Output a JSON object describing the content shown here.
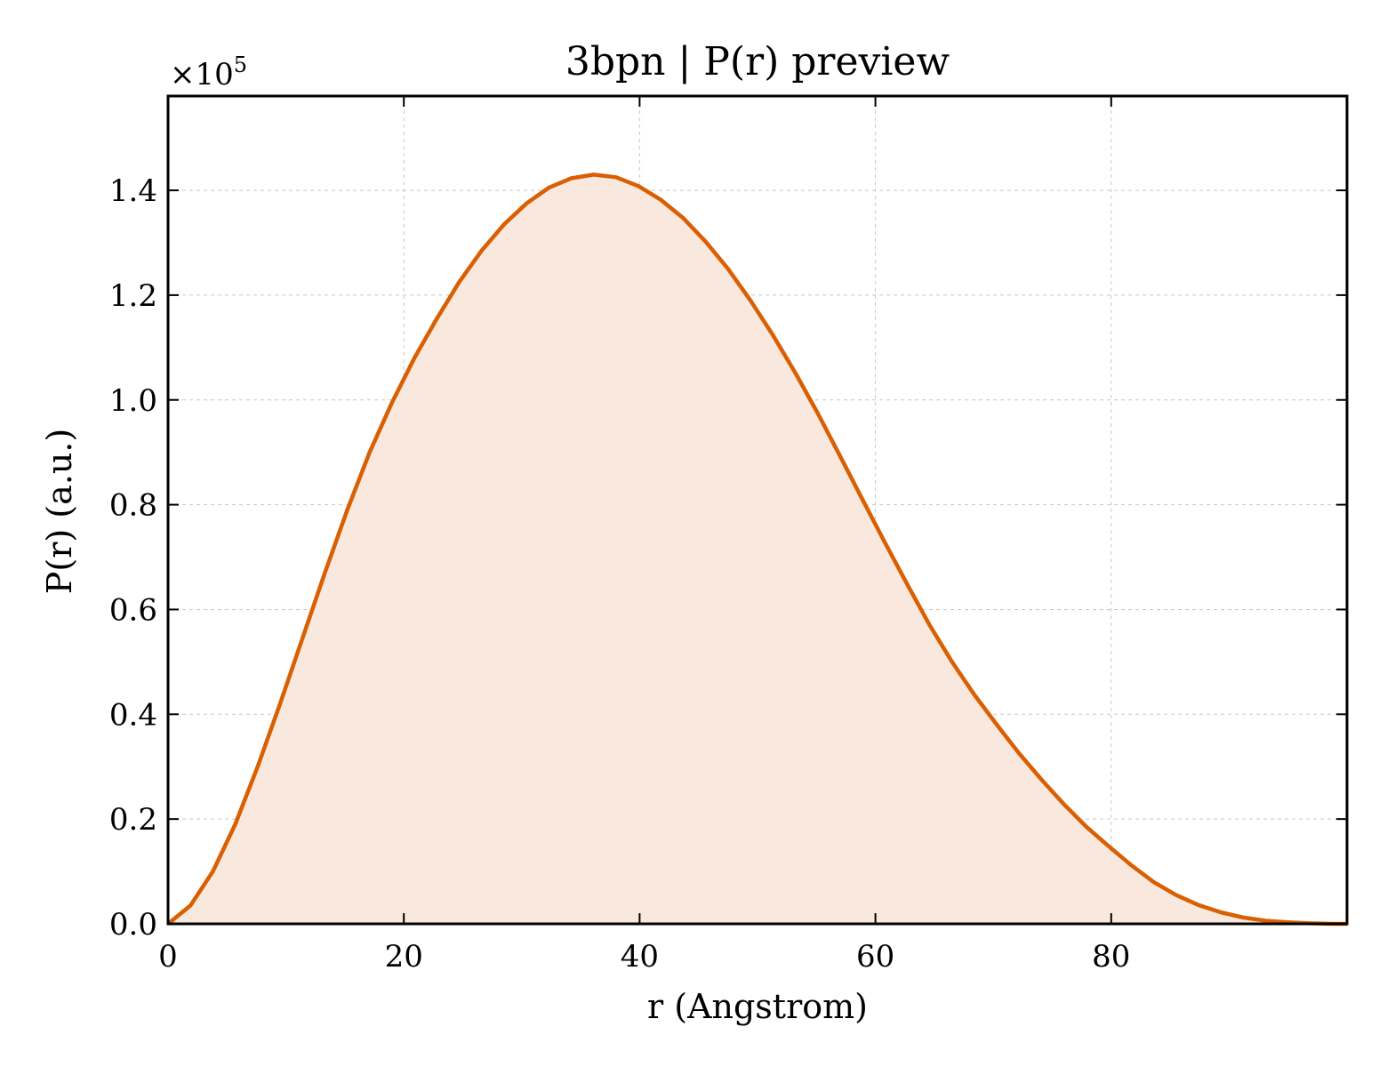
{
  "chart_data": {
    "type": "area",
    "title": "3bpn | P(r) preview",
    "xlabel": "r (Angstrom)",
    "ylabel": "P(r) (a.u.)",
    "y_multiplier_base": "×10",
    "y_multiplier_exp": "5",
    "xlim": [
      0,
      100
    ],
    "ylim": [
      0,
      1.58
    ],
    "x_ticks": [
      0,
      20,
      40,
      60,
      80
    ],
    "x_tick_labels": [
      "0",
      "20",
      "40",
      "60",
      "80"
    ],
    "y_ticks": [
      0.0,
      0.2,
      0.4,
      0.6,
      0.8,
      1.0,
      1.2,
      1.4
    ],
    "y_tick_labels": [
      "0.0",
      "0.2",
      "0.4",
      "0.6",
      "0.8",
      "1.0",
      "1.2",
      "1.4"
    ],
    "grid": true,
    "series": [
      {
        "color": "#d95f02",
        "fill_color": "#f8e8dd",
        "x": [
          0,
          1.9,
          3.8,
          5.7,
          7.6,
          9.5,
          11.4,
          13.3,
          15.2,
          17.1,
          19.0,
          20.9,
          22.8,
          24.7,
          26.6,
          28.5,
          30.4,
          32.3,
          34.2,
          36.1,
          38.0,
          39.9,
          41.8,
          43.7,
          45.6,
          47.5,
          49.4,
          51.3,
          53.2,
          55.1,
          57.0,
          58.9,
          60.8,
          62.7,
          64.6,
          66.5,
          68.4,
          70.3,
          72.2,
          74.1,
          76.0,
          77.9,
          79.8,
          81.7,
          83.6,
          85.5,
          87.4,
          89.3,
          91.2,
          93.1,
          95.0,
          96.9,
          98.8,
          100
        ],
        "y": [
          0.0,
          0.035,
          0.1,
          0.19,
          0.3,
          0.42,
          0.545,
          0.67,
          0.79,
          0.9,
          0.995,
          1.08,
          1.155,
          1.225,
          1.285,
          1.335,
          1.375,
          1.405,
          1.423,
          1.43,
          1.425,
          1.408,
          1.382,
          1.347,
          1.302,
          1.25,
          1.19,
          1.124,
          1.052,
          0.975,
          0.893,
          0.81,
          0.728,
          0.648,
          0.57,
          0.5,
          0.437,
          0.38,
          0.325,
          0.275,
          0.228,
          0.185,
          0.148,
          0.112,
          0.08,
          0.055,
          0.036,
          0.022,
          0.012,
          0.006,
          0.003,
          0.001,
          0.0,
          0.0
        ]
      }
    ]
  }
}
